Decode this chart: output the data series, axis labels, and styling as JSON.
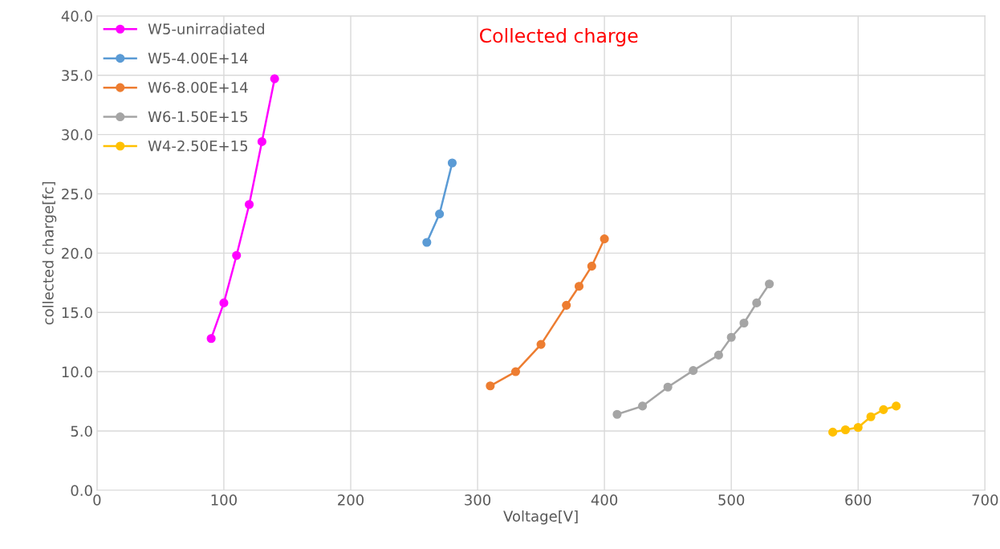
{
  "chart_data": {
    "type": "line",
    "title": "Collected charge",
    "xlabel": "Voltage[V]",
    "ylabel": "collected charge[fc]",
    "xlim": [
      0,
      700
    ],
    "xticks": [
      0,
      100,
      200,
      300,
      400,
      500,
      600,
      700
    ],
    "ylim": [
      0,
      40
    ],
    "yticks": [
      {
        "value": 0,
        "label": "0.0"
      },
      {
        "value": 5,
        "label": "5.0"
      },
      {
        "value": 10,
        "label": "10.0"
      },
      {
        "value": 15,
        "label": "15.0"
      },
      {
        "value": 20,
        "label": "20.0"
      },
      {
        "value": 25,
        "label": "25.0"
      },
      {
        "value": 30,
        "label": "30.0"
      },
      {
        "value": 35,
        "label": "35.0"
      },
      {
        "value": 40,
        "label": "40.0"
      }
    ],
    "grid": true,
    "legend": "top left",
    "marker": "circle",
    "line_style": "solid",
    "series": [
      {
        "name": "W5-unirradiated",
        "color": "#ff00ff",
        "x": [
          90,
          100,
          110,
          120,
          130,
          140
        ],
        "values": [
          12.8,
          15.8,
          19.8,
          24.1,
          29.4,
          34.7
        ]
      },
      {
        "name": "W5-4.00E+14",
        "color": "#5b9bd5",
        "x": [
          260,
          270,
          280
        ],
        "values": [
          20.9,
          23.3,
          27.6
        ]
      },
      {
        "name": "W6-8.00E+14",
        "color": "#ed7d31",
        "x": [
          310,
          330,
          350,
          370,
          380,
          390,
          400
        ],
        "values": [
          8.8,
          10.0,
          12.3,
          15.6,
          17.2,
          18.9,
          21.2
        ]
      },
      {
        "name": "W6-1.50E+15",
        "color": "#a5a5a5",
        "x": [
          410,
          430,
          450,
          470,
          490,
          500,
          510,
          520,
          530
        ],
        "values": [
          6.4,
          7.1,
          8.7,
          10.1,
          11.4,
          12.9,
          14.1,
          15.8,
          17.4
        ]
      },
      {
        "name": "W4-2.50E+15",
        "color": "#ffc000",
        "x": [
          580,
          590,
          600,
          610,
          620,
          630
        ],
        "values": [
          4.9,
          5.1,
          5.3,
          6.2,
          6.8,
          7.1
        ]
      }
    ]
  }
}
